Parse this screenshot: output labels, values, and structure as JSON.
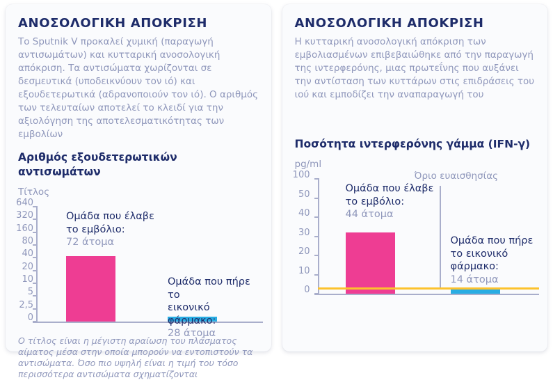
{
  "colors": {
    "navy": "#1e2c6a",
    "muted": "#8f97bb",
    "pink": "#ee3d93",
    "blue": "#29ade3",
    "orange": "#fcc22d",
    "axis": "#a9aecb",
    "card_bg": "#fafbfd"
  },
  "cards": [
    {
      "title": "ΑΝΟΣΟΛΟΓΙΚΗ ΑΠΟΚΡΙΣΗ",
      "description": "Το Sputnik V προκαλεί χυμική (παραγωγή αντισωμάτων) και κυτταρική ανοσολογική απόκριση. Τα αντισώματα χωρίζονται σε δεσμευτικά (υποδεικνύουν τον ιό) και εξουδετερωτικά (αδρανοποιούν τον ιό). Ο αριθμός των τελευταίων αποτελεί το κλειδί για την αξιολόγηση της αποτελεσματικότητας των εμβολίων",
      "chart_title": "Αριθμός εξουδετερωτικών αντισωμάτων",
      "unit": "Τίτλος",
      "annotations": {
        "vaccine": {
          "label": "Ομάδα που έλαβε\nτο εμβόλιο:",
          "count": "72 άτομα"
        },
        "placebo": {
          "label": "Ομάδα που πήρε το\nεικονικό φάρμακο:",
          "count": "28 άτομα"
        }
      },
      "footnote": "Ο τίτλος είναι η μέγιστη αραίωση του πλάσματος αίματος μέσα στην οποία μπορούν να εντοπιστούν τα αντισώματα. Όσο πιο υψηλή είναι η τιμή του τόσο περισσότερα αντισώματα σχηματίζονται"
    },
    {
      "title": "ΑΝΟΣΟΛΟΓΙΚΗ ΑΠΟΚΡΙΣΗ",
      "description": "Η κυτταρική ανοσολογική απόκριση των εμβολιασμένων επιβεβαιώθηκε από την παραγωγή της ιντερφερόνης, μιας πρωτεΐνης που αυξάνει την αντίσταση των κυττάρων στις επιδράσεις του ιού και εμποδίζει την αναπαραγωγή του",
      "chart_title": "Ποσότητα ιντερφερόνης γάμμα (IFN-γ)",
      "unit": "pg/ml",
      "annotations": {
        "vaccine": {
          "label": "Ομάδα που έλαβε\nτο εμβόλιο:",
          "count": "44 άτομα"
        },
        "placebo": {
          "label": "Ομάδα που πήρε\nτο εικονικό\nφάρμακο:",
          "count": "14 άτομα"
        }
      },
      "threshold_label": "Όριο ευαισθησίας"
    }
  ],
  "chart_data": [
    {
      "type": "bar",
      "title": "Αριθμός εξουδετερωτικών αντισωμάτων",
      "ylabel": "Τίτλος",
      "yscale": "doubling ticks (log-like), linear below 2,5",
      "ytick_labels": [
        "640",
        "320",
        "160",
        "80",
        "40",
        "20",
        "10",
        "5",
        "2,5",
        "0"
      ],
      "ytick_values": [
        640,
        320,
        160,
        80,
        40,
        20,
        10,
        5,
        2.5,
        0
      ],
      "grid": false,
      "legend": "none",
      "series": [
        {
          "name": "Ομάδα που έλαβε το εμβόλιο (72 άτομα)",
          "value": 45,
          "color": "#ee3d93"
        },
        {
          "name": "Ομάδα που πήρε το εικονικό φάρμακο (28 άτομα)",
          "value": 1,
          "color": "#29ade3"
        }
      ]
    },
    {
      "type": "bar",
      "title": "Ποσότητα ιντερφερόνης γάμμα (IFN-γ)",
      "ylabel": "pg/ml",
      "yscale": "linear 0-50, compressed 50-100",
      "ytick_labels": [
        "100",
        "50",
        "40",
        "30",
        "20",
        "10",
        "0"
      ],
      "ytick_values": [
        100,
        50,
        40,
        30,
        20,
        10,
        0
      ],
      "grid": false,
      "legend": "none",
      "series": [
        {
          "name": "Ομάδα που έλαβε το εμβόλιο (44 άτομα)",
          "value": 32,
          "color": "#ee3d93"
        },
        {
          "name": "Ομάδα που πήρε το εικονικό φάρμακο (14 άτομα)",
          "value": 2,
          "color": "#29ade3"
        }
      ],
      "threshold": {
        "label": "Όριο ευαισθησίας",
        "value": 2.5,
        "color": "#fcc22d"
      }
    }
  ]
}
